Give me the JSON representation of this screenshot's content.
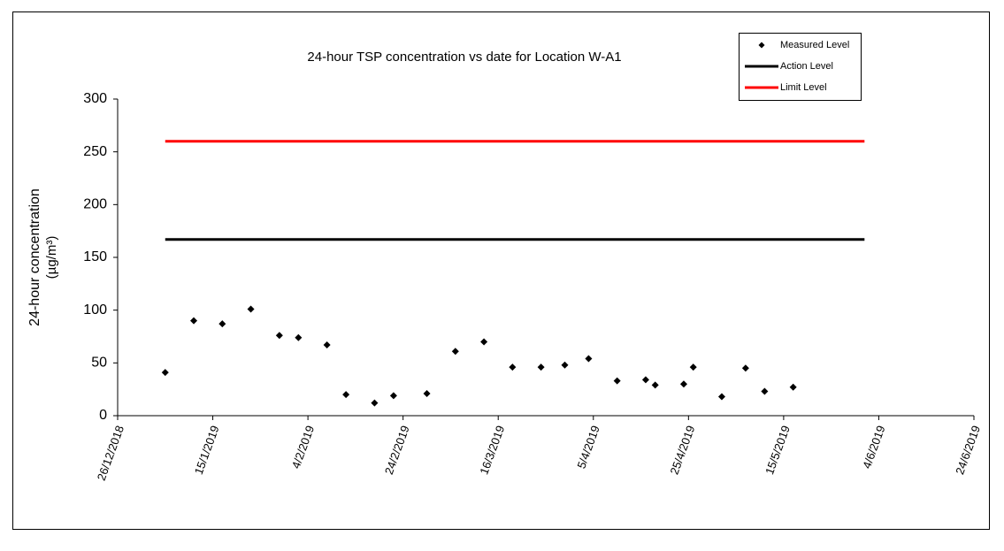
{
  "chart_data": {
    "type": "scatter",
    "title": "24-hour TSP concentration vs date for Location W-A1",
    "y_label": [
      "24-hour concentration",
      "(µg/m³)"
    ],
    "xlim": [
      "2018-12-26",
      "2019-06-24"
    ],
    "xticks": [
      {
        "value": "2018-12-26",
        "label": "26/12/2018"
      },
      {
        "value": "2019-01-15",
        "label": "15/1/2019"
      },
      {
        "value": "2019-02-04",
        "label": "4/2/2019"
      },
      {
        "value": "2019-02-24",
        "label": "24/2/2019"
      },
      {
        "value": "2019-03-16",
        "label": "16/3/2019"
      },
      {
        "value": "2019-04-05",
        "label": "5/4/2019"
      },
      {
        "value": "2019-04-25",
        "label": "25/4/2019"
      },
      {
        "value": "2019-05-15",
        "label": "15/5/2019"
      },
      {
        "value": "2019-06-04",
        "label": "4/6/2019"
      },
      {
        "value": "2019-06-24",
        "label": "24/6/2019"
      }
    ],
    "ylim": [
      0,
      300
    ],
    "yticks": [
      0,
      50,
      100,
      150,
      200,
      250,
      300
    ],
    "legend": "top-right",
    "series": [
      {
        "name": "Measured Level",
        "color": "#000000",
        "style": "marker",
        "x": [
          "2019-01-05",
          "2019-01-11",
          "2019-01-17",
          "2019-01-23",
          "2019-01-29",
          "2019-02-02",
          "2019-02-08",
          "2019-02-12",
          "2019-02-18",
          "2019-02-22",
          "2019-03-01",
          "2019-03-07",
          "2019-03-13",
          "2019-03-19",
          "2019-03-25",
          "2019-03-30",
          "2019-04-04",
          "2019-04-10",
          "2019-04-16",
          "2019-04-18",
          "2019-04-24",
          "2019-04-26",
          "2019-05-02",
          "2019-05-07",
          "2019-05-11",
          "2019-05-17"
        ],
        "values": [
          41,
          90,
          87,
          101,
          76,
          74,
          67,
          20,
          12,
          19,
          21,
          61,
          70,
          46,
          46,
          48,
          54,
          33,
          34,
          29,
          30,
          46,
          18,
          45,
          23,
          27
        ]
      },
      {
        "name": "Action Level",
        "color": "#000000",
        "style": "line",
        "x": [
          "2019-01-05",
          "2019-06-01"
        ],
        "values": [
          167,
          167
        ]
      },
      {
        "name": "Limit Level",
        "color": "#ff0000",
        "style": "line",
        "x": [
          "2019-01-05",
          "2019-06-01"
        ],
        "values": [
          260,
          260
        ]
      }
    ]
  }
}
